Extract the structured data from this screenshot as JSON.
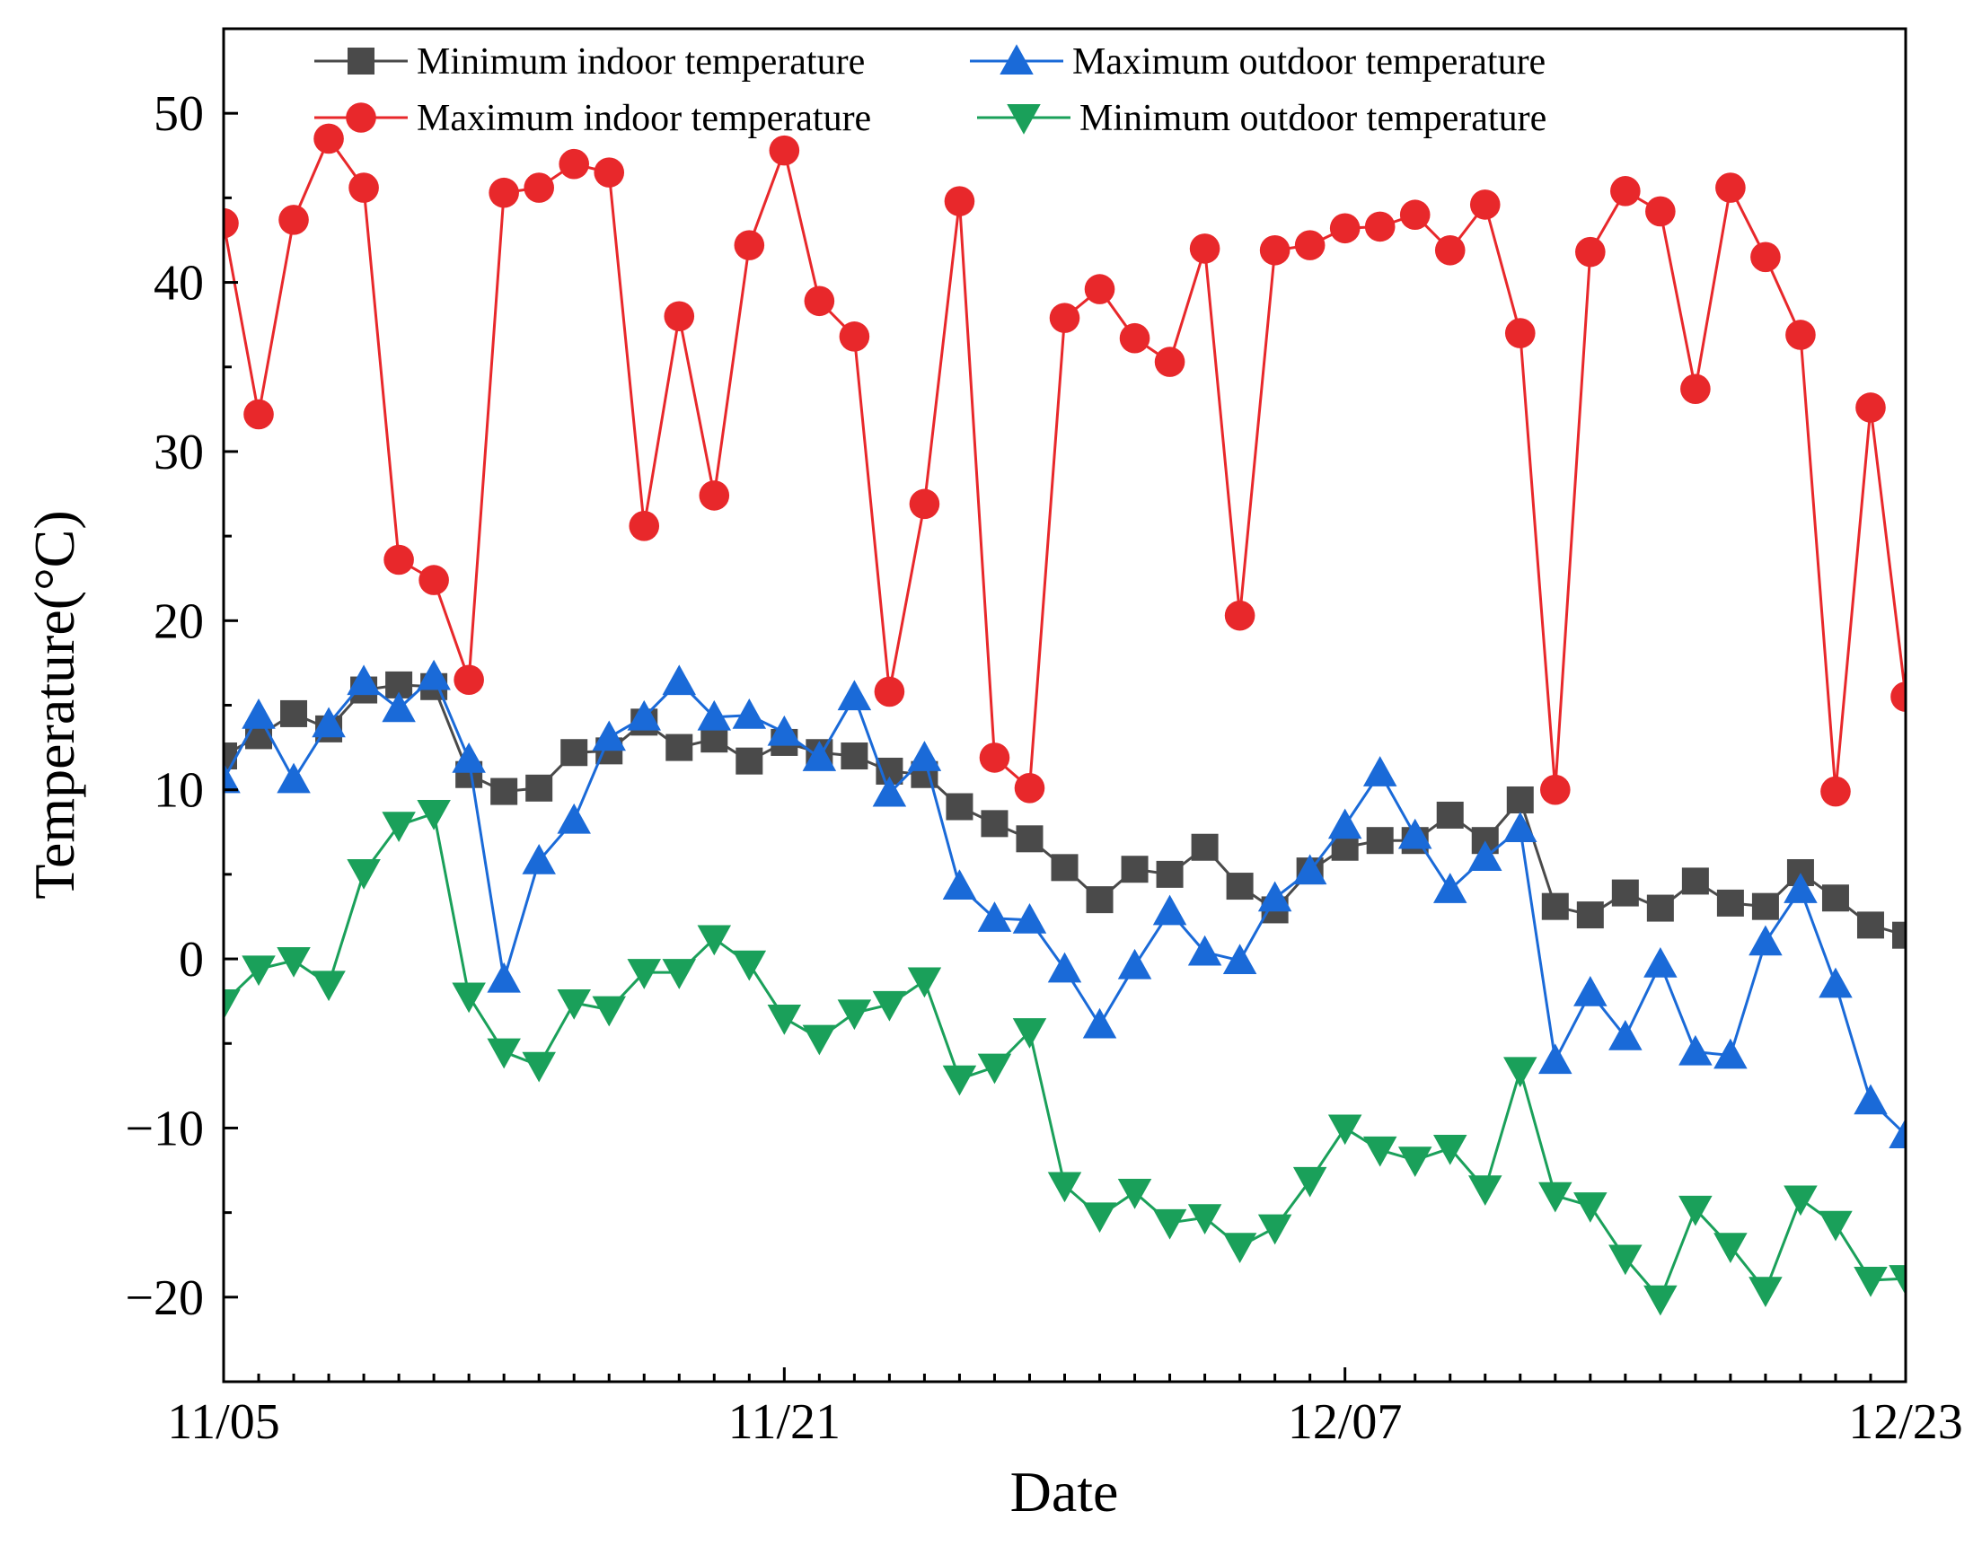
{
  "chart_data": {
    "type": "line",
    "title": "",
    "xlabel": "Date",
    "ylabel": "Temperature(°C)",
    "ylim": [
      -25,
      55
    ],
    "yticks": [
      -20,
      -10,
      0,
      10,
      20,
      30,
      40,
      50
    ],
    "ytick_labels": [
      "−20",
      "−10",
      "0",
      "10",
      "20",
      "30",
      "40",
      "50"
    ],
    "xlim": [
      0,
      48
    ],
    "xticks": [
      0,
      16,
      32,
      48
    ],
    "xtick_labels": [
      "11/05",
      "11/21",
      "12/07",
      "12/23"
    ],
    "legend_position": "top",
    "grid": false,
    "x": [
      0,
      1,
      2,
      3,
      4,
      5,
      6,
      7,
      8,
      9,
      10,
      11,
      12,
      13,
      14,
      15,
      16,
      17,
      18,
      19,
      20,
      21,
      22,
      23,
      24,
      25,
      26,
      27,
      28,
      29,
      30,
      31,
      32,
      33,
      34,
      35,
      36,
      37,
      38,
      39,
      40,
      41,
      42,
      43,
      44,
      45,
      46,
      47,
      48
    ],
    "series": [
      {
        "name": "Minimum indoor temperature",
        "color": "#4a4a4a",
        "marker": "square",
        "values": [
          12.0,
          13.2,
          14.5,
          13.6,
          15.9,
          16.2,
          16.1,
          10.9,
          9.9,
          10.1,
          12.2,
          12.3,
          14.0,
          12.5,
          13.0,
          11.7,
          12.8,
          12.2,
          12.0,
          11.1,
          10.9,
          9.0,
          8.0,
          7.1,
          5.4,
          3.5,
          5.3,
          5.0,
          6.6,
          4.3,
          2.9,
          5.2,
          6.6,
          7.0,
          7.0,
          8.5,
          7.0,
          9.4,
          3.1,
          2.6,
          3.9,
          3.0,
          4.6,
          3.3,
          3.1,
          5.1,
          3.6,
          2.0,
          1.4
        ]
      },
      {
        "name": "Maximum outdoor temperature",
        "color": "#1a6ad8",
        "marker": "triangle-up",
        "values": [
          10.6,
          14.4,
          10.6,
          13.9,
          16.4,
          14.8,
          16.7,
          11.8,
          -1.2,
          5.8,
          8.2,
          13.1,
          14.3,
          16.4,
          14.3,
          14.4,
          13.4,
          11.9,
          15.5,
          9.8,
          11.9,
          4.3,
          2.4,
          2.3,
          -0.6,
          -3.9,
          -0.4,
          2.8,
          0.4,
          -0.1,
          3.6,
          5.2,
          7.9,
          11.0,
          7.3,
          4.1,
          6.0,
          7.7,
          -6.0,
          -2.0,
          -4.6,
          -0.3,
          -5.5,
          -5.7,
          1.0,
          4.1,
          -1.5,
          -8.4,
          -10.4
        ]
      },
      {
        "name": "Maximum indoor temperature",
        "color": "#e8282b",
        "marker": "circle",
        "values": [
          43.5,
          32.2,
          43.7,
          48.5,
          45.6,
          23.6,
          22.4,
          16.5,
          45.3,
          45.6,
          47.0,
          46.5,
          25.6,
          38.0,
          27.4,
          42.2,
          47.8,
          38.9,
          36.8,
          15.8,
          26.9,
          44.8,
          11.9,
          10.1,
          37.9,
          39.6,
          36.7,
          35.3,
          42.0,
          20.3,
          41.9,
          42.2,
          43.2,
          43.3,
          44.0,
          41.9,
          44.6,
          37.0,
          10.0,
          41.8,
          45.4,
          44.2,
          33.7,
          45.6,
          41.5,
          36.9,
          9.9,
          32.6,
          15.5
        ]
      },
      {
        "name": "Minimum outdoor temperature",
        "color": "#1aa05a",
        "marker": "triangle-down",
        "values": [
          -2.6,
          -0.6,
          -0.1,
          -1.5,
          5.1,
          7.9,
          8.6,
          -2.2,
          -5.5,
          -6.3,
          -2.6,
          -3.0,
          -0.8,
          -0.8,
          1.2,
          -0.3,
          -3.5,
          -4.7,
          -3.2,
          -2.7,
          -1.3,
          -7.1,
          -6.4,
          -4.3,
          -13.4,
          -15.2,
          -13.8,
          -15.6,
          -15.3,
          -17.0,
          -15.9,
          -13.1,
          -10.0,
          -11.3,
          -11.9,
          -11.2,
          -13.6,
          -6.6,
          -14.0,
          -14.6,
          -17.7,
          -20.1,
          -14.8,
          -17.0,
          -19.6,
          -14.2,
          -15.7,
          -19.0,
          -18.9
        ]
      }
    ]
  }
}
